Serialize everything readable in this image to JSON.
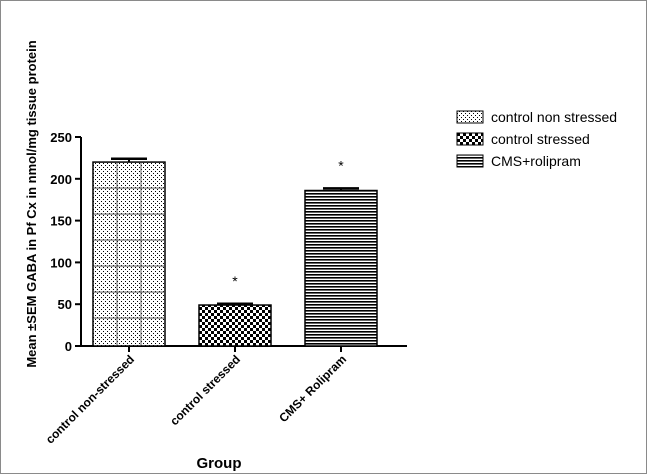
{
  "chart_data": {
    "type": "bar",
    "title": "",
    "xlabel": "Group",
    "ylabel": "Mean ±SEM GABA in Pf Cx in nmol/mg tissue protein",
    "ylim": [
      0,
      250
    ],
    "yticks": [
      0,
      50,
      100,
      150,
      200,
      250
    ],
    "categories": [
      "control non-stressed",
      "control stressed",
      "CMS+ Rolipram"
    ],
    "values": [
      220,
      49,
      186
    ],
    "errors": [
      4,
      1.5,
      2.5
    ],
    "significance": [
      "",
      "*",
      "*"
    ],
    "legend": {
      "position": "right",
      "entries": [
        "control non stressed",
        "control stressed",
        "CMS+rolipram"
      ]
    },
    "grid": false
  }
}
